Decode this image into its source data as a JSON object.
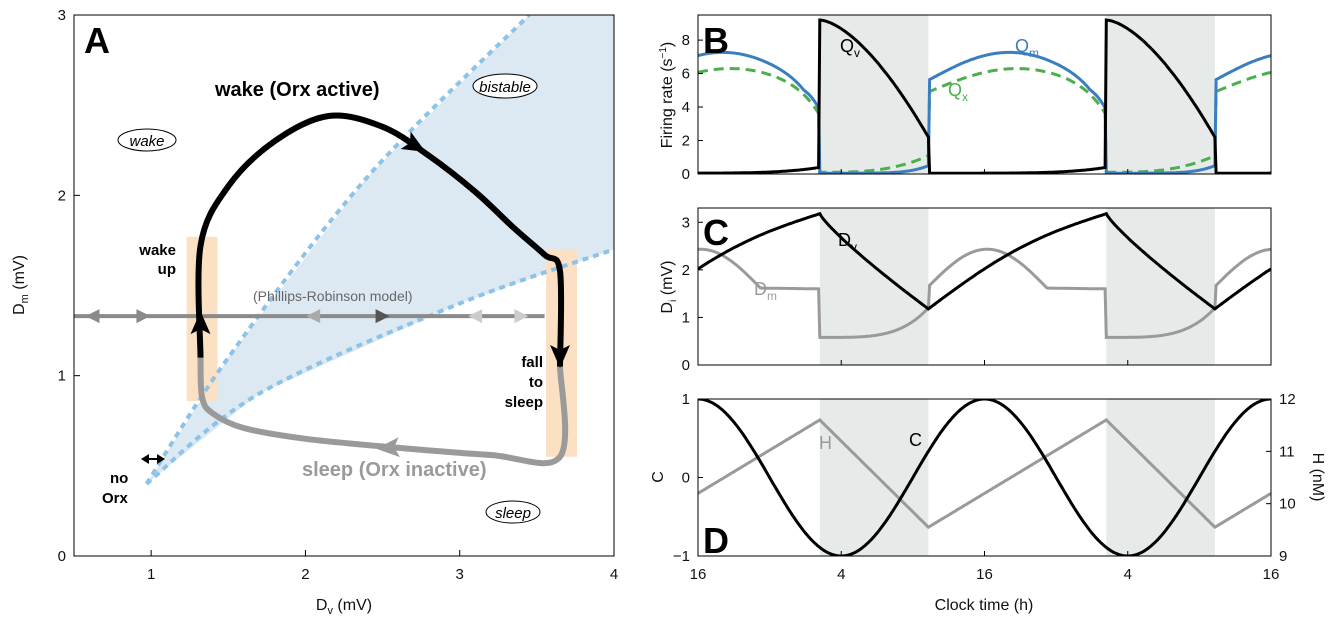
{
  "chart_data": [
    {
      "panel": "A",
      "type": "line",
      "panel_label": "A",
      "xlabel": "D",
      "xlabel_sub": "v",
      "xlabel_unit": " (mV)",
      "ylabel": "D",
      "ylabel_sub": "m",
      "ylabel_unit": " (mV)",
      "xlim": [
        0.5,
        4
      ],
      "ylim": [
        0,
        3
      ],
      "xticks": [
        1,
        2,
        3,
        4
      ],
      "yticks": [
        0,
        1,
        2,
        3
      ],
      "grid": false,
      "region_labels": {
        "wake": "wake",
        "bistable": "bistable",
        "sleep": "sleep"
      },
      "boundaries": [
        {
          "name": "upper",
          "x": [
            0.97,
            1.5,
            2.4,
            3.45
          ],
          "y": [
            0.4,
            1.1,
            2.1,
            3.0
          ]
        },
        {
          "name": "lower",
          "x": [
            0.97,
            1.7,
            3.0,
            4.0
          ],
          "y": [
            0.4,
            0.9,
            1.4,
            1.7
          ]
        }
      ],
      "wake_trajectory": {
        "label": "wake (Orx active)",
        "x": [
          1.32,
          1.32,
          1.5,
          1.8,
          2.15,
          2.5,
          2.8,
          3.1,
          3.35,
          3.55,
          3.65,
          3.65
        ],
        "y": [
          1.1,
          1.72,
          2.05,
          2.3,
          2.44,
          2.38,
          2.22,
          2.02,
          1.82,
          1.67,
          1.58,
          1.05
        ]
      },
      "sleep_trajectory": {
        "label": "sleep (Orx inactive)",
        "x": [
          3.65,
          3.65,
          3.2,
          2.6,
          2.0,
          1.6,
          1.4,
          1.33,
          1.32
        ],
        "y": [
          1.05,
          0.55,
          0.56,
          0.6,
          0.65,
          0.71,
          0.79,
          0.88,
          1.1
        ]
      },
      "pr_model": {
        "label": "(Phillips-Robinson model)",
        "y": 1.33,
        "x_start": 0.5,
        "x_end": 3.55
      },
      "annotations": {
        "wake_up": [
          "wake",
          "up"
        ],
        "fall_to_sleep": [
          "fall",
          "to",
          "sleep"
        ],
        "no_orx": [
          "no",
          "Orx"
        ]
      }
    },
    {
      "panel": "B",
      "type": "line",
      "panel_label": "B",
      "ylabel": "Firing rate (s",
      "ylabel_sup": "−1",
      "ylabel_close": ")",
      "ylim": [
        0,
        9.5
      ],
      "yticks": [
        0,
        2,
        4,
        6,
        8
      ],
      "series": [
        {
          "name": "Q",
          "sub": "v",
          "color": "#000000"
        },
        {
          "name": "Q",
          "sub": "m",
          "color": "#3a7ebf"
        },
        {
          "name": "Q",
          "sub": "x",
          "color": "#4cae4c",
          "dashed": true
        }
      ]
    },
    {
      "panel": "C",
      "type": "line",
      "panel_label": "C",
      "ylabel": "D",
      "ylabel_sub": "i",
      "ylabel_unit": " (mV)",
      "ylim": [
        0,
        3.3
      ],
      "yticks": [
        0,
        1,
        2,
        3
      ],
      "series": [
        {
          "name": "D",
          "sub": "v",
          "color": "#000000"
        },
        {
          "name": "D",
          "sub": "m",
          "color": "#9a9a9a"
        }
      ]
    },
    {
      "panel": "D",
      "type": "line",
      "panel_label": "D",
      "ylabel": "C",
      "ylabel_right": "H (nM)",
      "ylim": [
        -1,
        1
      ],
      "yticks": [
        -1,
        0,
        1
      ],
      "ylim_right": [
        9,
        12
      ],
      "yticks_right": [
        9,
        10,
        11,
        12
      ],
      "xlabel": "Clock time (h)",
      "xticklabels": [
        "16",
        "4",
        "16",
        "4",
        "16"
      ],
      "series": [
        {
          "name": "C",
          "color": "#000000"
        },
        {
          "name": "H",
          "color": "#9a9a9a"
        }
      ]
    }
  ],
  "colors": {
    "shade": "#e6ebe9",
    "bistable": "#dce9f2",
    "boundary": "#8dc3e6",
    "orange": "#fbe0c4",
    "gray": "#9a9a9a",
    "darkgray": "#666666"
  }
}
